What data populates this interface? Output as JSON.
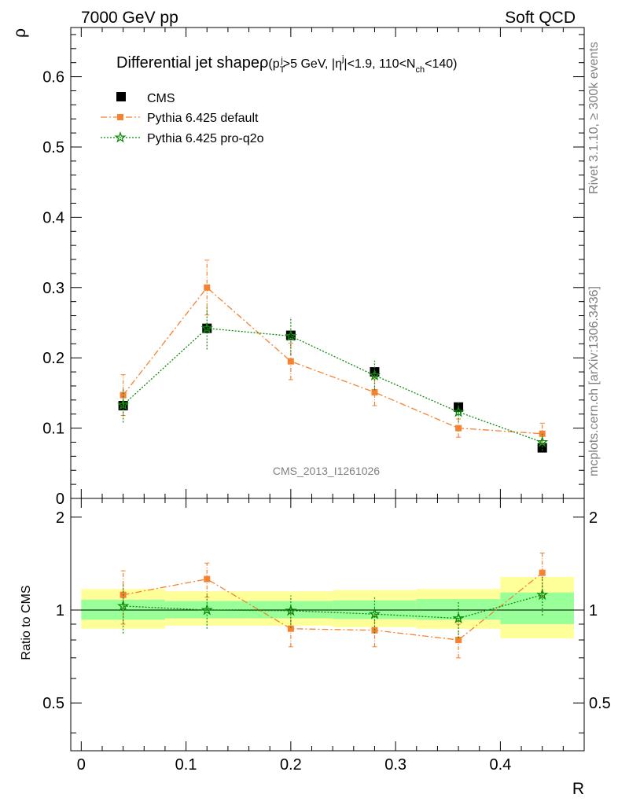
{
  "header": {
    "energy_label": "7000 GeV pp",
    "process_label": "Soft QCD"
  },
  "side": {
    "rivet_label": "Rivet 3.1.10, ≥ 300k events",
    "mcplots_label": "mcplots.cern.ch [arXiv:1306.3436]"
  },
  "colors": {
    "cms": "#000000",
    "pythia_default": "#f58230",
    "pythia_proq2o": "#0b8a0b",
    "band_inner": "#99ff99",
    "band_outer": "#ffff99"
  },
  "chart_data": [
    {
      "id": "main",
      "type": "line",
      "title": {
        "prefix": "Differential jet shape",
        "rho": "ρ",
        "open": "(p",
        "pt_sub": "T",
        "pt_sup": "j",
        "mid1": ">5 GeV, |η",
        "eta_sup": "j",
        "mid2": "|<1.9, 110<N",
        "nch_sub": "ch",
        "close": "<140)"
      },
      "ylabel": "ρ",
      "xlim": [
        -0.01,
        0.48
      ],
      "ylim": [
        0,
        0.67
      ],
      "yticks": [
        {
          "v": 0.1,
          "label": "0.1"
        },
        {
          "v": 0.2,
          "label": "0.2"
        },
        {
          "v": 0.3,
          "label": "0.3"
        },
        {
          "v": 0.4,
          "label": "0.4"
        },
        {
          "v": 0.5,
          "label": "0.5"
        },
        {
          "v": 0.6,
          "label": "0.6"
        },
        {
          "v": 0.0,
          "label": "0"
        }
      ],
      "watermark": "CMS_2013_I1261026",
      "legend": {
        "placement": "top-left",
        "entries": [
          {
            "series": "cms",
            "label": "CMS"
          },
          {
            "series": "pythia_default",
            "label": "Pythia 6.425 default"
          },
          {
            "series": "pythia_proq2o",
            "label": "Pythia 6.425 pro-q2o"
          }
        ]
      },
      "x": [
        0.04,
        0.12,
        0.2,
        0.28,
        0.36,
        0.44
      ],
      "series": [
        {
          "key": "cms",
          "name": "CMS",
          "marker": "square",
          "values": [
            0.132,
            0.242,
            0.232,
            0.18,
            0.13,
            0.072
          ],
          "err": [
            0.003,
            0.003,
            0.003,
            0.003,
            0.002,
            0.002
          ]
        },
        {
          "key": "pythia_default",
          "name": "Pythia 6.425 default",
          "marker": "square-small",
          "values": [
            0.147,
            0.3,
            0.195,
            0.151,
            0.1,
            0.092
          ],
          "err": [
            0.029,
            0.039,
            0.026,
            0.019,
            0.013,
            0.015
          ]
        },
        {
          "key": "pythia_proq2o",
          "name": "Pythia 6.425 pro-q2o",
          "marker": "star",
          "values": [
            0.133,
            0.242,
            0.231,
            0.175,
            0.123,
            0.08
          ],
          "err": [
            0.025,
            0.03,
            0.027,
            0.021,
            0.015,
            0.012
          ]
        }
      ]
    },
    {
      "id": "ratio",
      "type": "line",
      "ylabel": "Ratio to CMS",
      "xlabel": "R",
      "xlim": [
        -0.01,
        0.48
      ],
      "ylim": [
        0.35,
        2.3
      ],
      "log": true,
      "yticks": [
        {
          "v": 0.5,
          "label": "0.5"
        },
        {
          "v": 1,
          "label": "1"
        },
        {
          "v": 2,
          "label": "2"
        }
      ],
      "xticks": [
        {
          "v": 0,
          "label": "0"
        },
        {
          "v": 0.1,
          "label": "0.1"
        },
        {
          "v": 0.2,
          "label": "0.2"
        },
        {
          "v": 0.3,
          "label": "0.3"
        },
        {
          "v": 0.4,
          "label": "0.4"
        }
      ],
      "bins": [
        {
          "lo": 0.0,
          "hi": 0.08,
          "inner": [
            0.93,
            1.08
          ],
          "outer": [
            0.87,
            1.17
          ]
        },
        {
          "lo": 0.08,
          "hi": 0.16,
          "inner": [
            0.94,
            1.07
          ],
          "outer": [
            0.89,
            1.15
          ]
        },
        {
          "lo": 0.16,
          "hi": 0.24,
          "inner": [
            0.94,
            1.07
          ],
          "outer": [
            0.89,
            1.15
          ]
        },
        {
          "lo": 0.24,
          "hi": 0.32,
          "inner": [
            0.935,
            1.075
          ],
          "outer": [
            0.88,
            1.16
          ]
        },
        {
          "lo": 0.32,
          "hi": 0.4,
          "inner": [
            0.93,
            1.085
          ],
          "outer": [
            0.87,
            1.17
          ]
        },
        {
          "lo": 0.4,
          "hi": 0.48,
          "inner": [
            0.9,
            1.14
          ],
          "outer": [
            0.81,
            1.28
          ]
        }
      ],
      "reference": 1,
      "x": [
        0.04,
        0.12,
        0.2,
        0.28,
        0.36,
        0.44
      ],
      "series": [
        {
          "key": "pythia_default",
          "name": "Pythia 6.425 default",
          "marker": "square-small",
          "values": [
            1.12,
            1.26,
            0.87,
            0.86,
            0.8,
            1.32
          ],
          "err": [
            0.22,
            0.16,
            0.11,
            0.1,
            0.1,
            0.21
          ]
        },
        {
          "key": "pythia_proq2o",
          "name": "Pythia 6.425 pro-q2o",
          "marker": "star",
          "values": [
            1.03,
            1.0,
            0.995,
            0.97,
            0.94,
            1.12
          ],
          "err": [
            0.19,
            0.13,
            0.12,
            0.13,
            0.13,
            0.16
          ]
        }
      ]
    }
  ]
}
